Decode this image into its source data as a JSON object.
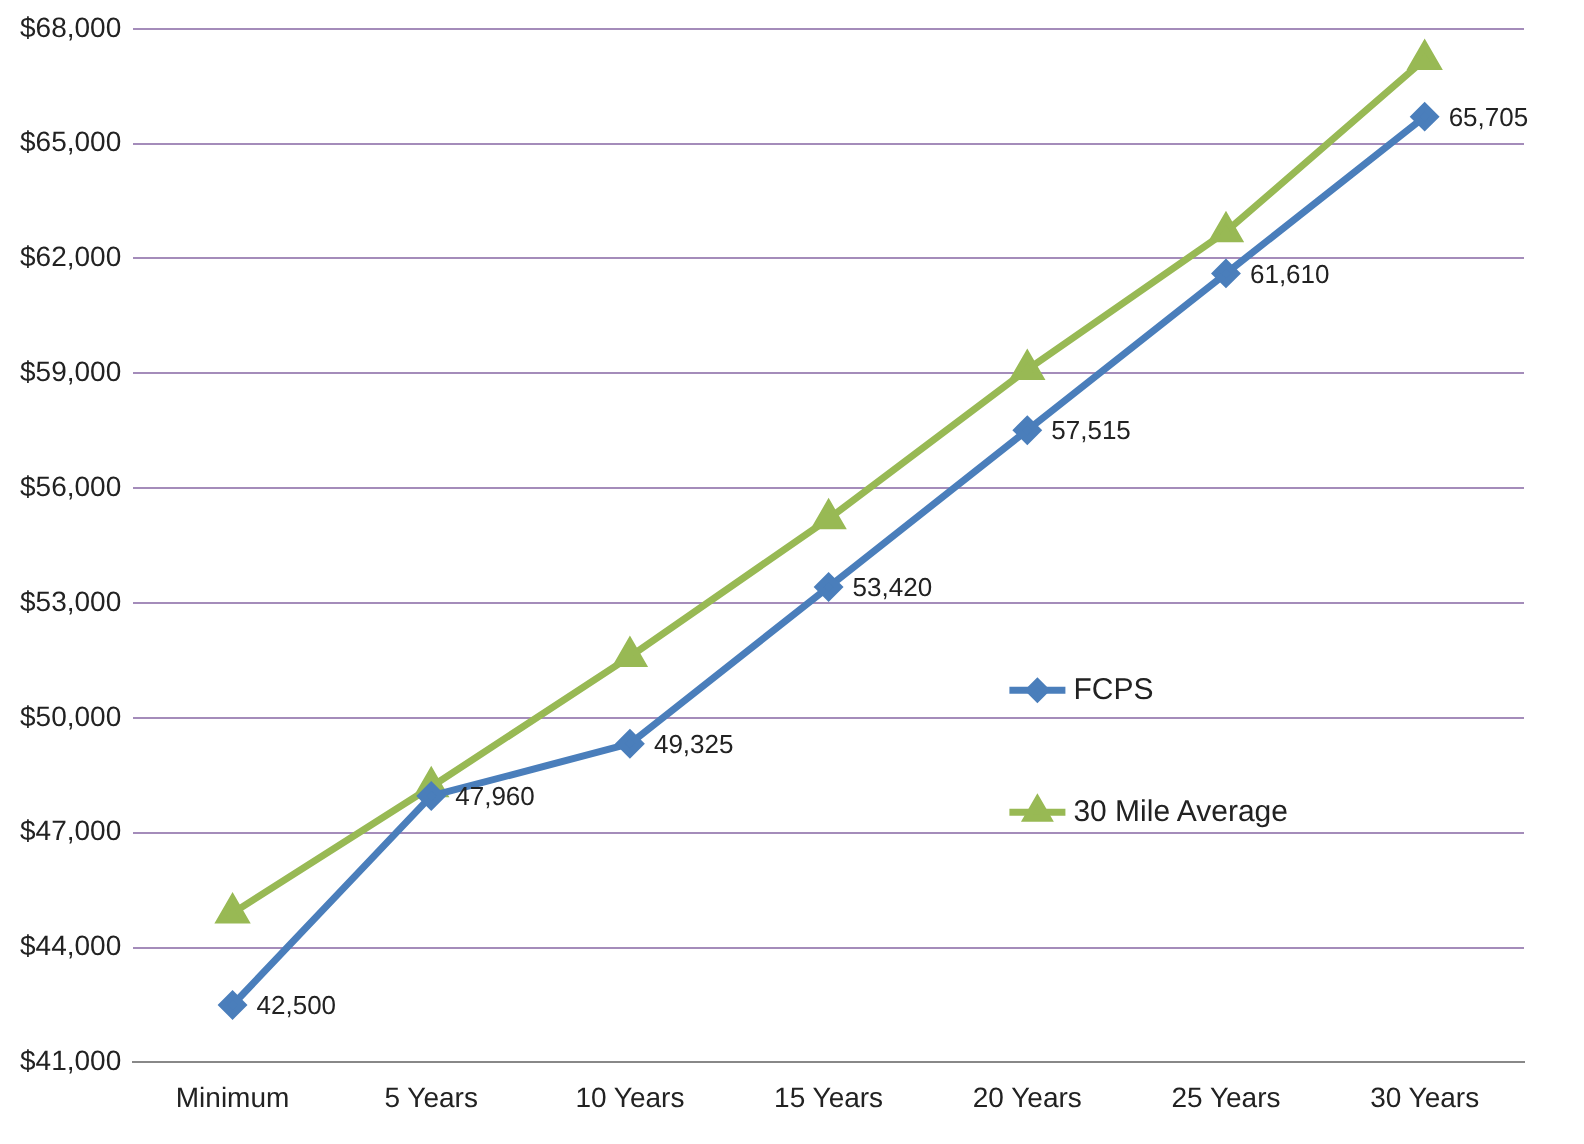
{
  "chart_data": {
    "type": "line",
    "categories": [
      "Minimum",
      "5 Years",
      "10 Years",
      "15 Years",
      "20 Years",
      "25 Years",
      "30 Years"
    ],
    "series": [
      {
        "name": "FCPS",
        "color": "#4a7ebb",
        "marker": "diamond",
        "values": [
          42500,
          47960,
          49325,
          53420,
          57515,
          61610,
          65705
        ],
        "value_labels": [
          "42,500",
          "47,960",
          "49,325",
          "53,420",
          "57,515",
          "61,610",
          "65,705"
        ]
      },
      {
        "name": "30 Mile Average",
        "color": "#98b954",
        "marker": "triangle",
        "values": [
          44900,
          48200,
          51600,
          55200,
          59100,
          62700,
          67200
        ]
      }
    ],
    "ylim": [
      41000,
      68000
    ],
    "yticks": [
      {
        "value": 41000,
        "label": "$41,000"
      },
      {
        "value": 44000,
        "label": "$44,000"
      },
      {
        "value": 47000,
        "label": "$47,000"
      },
      {
        "value": 50000,
        "label": "$50,000"
      },
      {
        "value": 53000,
        "label": "$53,000"
      },
      {
        "value": 56000,
        "label": "$56,000"
      },
      {
        "value": 59000,
        "label": "$59,000"
      },
      {
        "value": 62000,
        "label": "$62,000"
      },
      {
        "value": 65000,
        "label": "$65,000"
      },
      {
        "value": 68000,
        "label": "$68,000"
      }
    ],
    "grid": "y",
    "legend": "right"
  }
}
